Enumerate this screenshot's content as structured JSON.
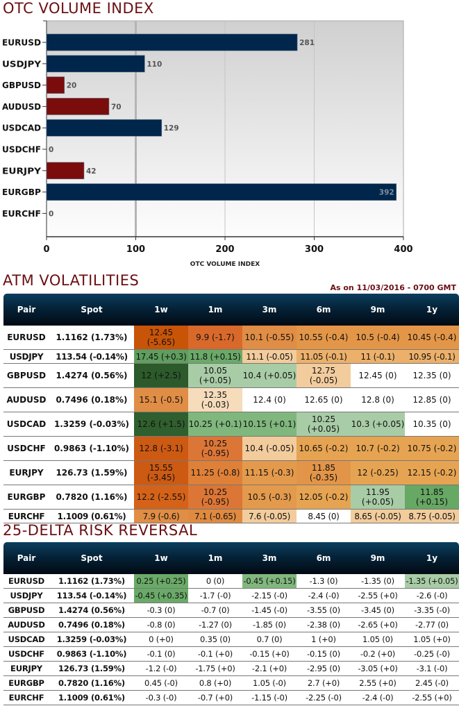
{
  "sections": {
    "volume_title": "OTC VOLUME INDEX",
    "atm_title": "ATM VOLATILITIES",
    "rr_title": "25-DELTA RISK REVERSAL",
    "as_on": "As on 11/03/2016 - 0700 GMT"
  },
  "colors": {
    "title": "#6b0f12",
    "bar_positive": "#01264c",
    "bar_negative": "#7b0c0c",
    "header_dark": "#010a14"
  },
  "chart_data": {
    "type": "bar",
    "orientation": "horizontal",
    "title": "OTC VOLUME INDEX",
    "xlabel": "OTC VOLUME INDEX",
    "ylabel": "",
    "categories": [
      "EURUSD",
      "USDJPY",
      "GBPUSD",
      "AUDUSD",
      "USDCAD",
      "USDCHF",
      "EURJPY",
      "EURGBP",
      "EURCHF"
    ],
    "values": [
      281,
      110,
      20,
      70,
      129,
      0,
      42,
      392,
      0
    ],
    "bar_colors": [
      "navy",
      "navy",
      "maroon",
      "maroon",
      "navy",
      "navy",
      "maroon",
      "navy",
      "navy"
    ],
    "xlim": [
      0,
      400
    ],
    "xticks": [
      0,
      100,
      200,
      300,
      400
    ],
    "grid": true,
    "legend": "none"
  },
  "atm": {
    "headers": [
      "Pair",
      "Spot",
      "1w",
      "1m",
      "3m",
      "6m",
      "9m",
      "1y"
    ],
    "rows": [
      {
        "pair": "EURUSD",
        "spot": "1.1162 (1.73%)",
        "cells": [
          {
            "v": "12.45 (-5.65)",
            "c": "#c85408"
          },
          {
            "v": "9.9 (-1.7)",
            "c": "#d9692a"
          },
          {
            "v": "10.1 (-0.55)",
            "c": "#e08d45"
          },
          {
            "v": "10.55 (-0.4)",
            "c": "#e39648"
          },
          {
            "v": "10.5 (-0.4)",
            "c": "#e39648"
          },
          {
            "v": "10.45 (-0.4)",
            "c": "#e39648"
          }
        ]
      },
      {
        "pair": "USDJPY",
        "spot": "113.54 (-0.14%)",
        "short": true,
        "cells": [
          {
            "v": "17.45 (+0.3)",
            "c": "#5f9e5e"
          },
          {
            "v": "11.8 (+0.15)",
            "c": "#6aaa68"
          },
          {
            "v": "11.1 (-0.05)",
            "c": "#f2cc9c"
          },
          {
            "v": "11.05 (-0.1)",
            "c": "#ecb06a"
          },
          {
            "v": "11 (-0.1)",
            "c": "#ecb06a"
          },
          {
            "v": "10.95 (-0.1)",
            "c": "#ecb06a"
          }
        ]
      },
      {
        "pair": "GBPUSD",
        "spot": "1.4274 (0.56%)",
        "cells": [
          {
            "v": "12 (+2.5)",
            "c": "#2c5a2b"
          },
          {
            "v": "10.05 (+0.05)",
            "c": "#a8cca6"
          },
          {
            "v": "10.4 (+0.05)",
            "c": "#a8cca6"
          },
          {
            "v": "12.75 (-0.05)",
            "c": "#f3cc9e"
          },
          {
            "v": "12.45 (0)",
            "c": "#ffffff"
          },
          {
            "v": "12.35 (0)",
            "c": "#ffffff"
          }
        ]
      },
      {
        "pair": "AUDUSD",
        "spot": "0.7496 (0.18%)",
        "cells": [
          {
            "v": "15.1 (-0.5)",
            "c": "#e08d45"
          },
          {
            "v": "12.35 (-0.03)",
            "c": "#f6dcbb"
          },
          {
            "v": "12.4 (0)",
            "c": "#ffffff"
          },
          {
            "v": "12.65 (0)",
            "c": "#ffffff"
          },
          {
            "v": "12.8 (0)",
            "c": "#ffffff"
          },
          {
            "v": "12.85 (0)",
            "c": "#ffffff"
          }
        ]
      },
      {
        "pair": "USDCAD",
        "spot": "1.3259 (-0.03%)",
        "cells": [
          {
            "v": "12.6 (+1.5)",
            "c": "#2f5f2e"
          },
          {
            "v": "10.25 (+0.1)",
            "c": "#80b77d"
          },
          {
            "v": "10.15 (+0.1)",
            "c": "#80b77d"
          },
          {
            "v": "10.25 (+0.05)",
            "c": "#a8cca6"
          },
          {
            "v": "10.3 (+0.05)",
            "c": "#a8cca6"
          },
          {
            "v": "10.35 (0)",
            "c": "#ffffff"
          }
        ]
      },
      {
        "pair": "USDCHF",
        "spot": "0.9863 (-1.10%)",
        "cells": [
          {
            "v": "12.8 (-3.1)",
            "c": "#cd5a12"
          },
          {
            "v": "10.25 (-0.95)",
            "c": "#dc7636"
          },
          {
            "v": "10.4 (-0.05)",
            "c": "#f2cc9c"
          },
          {
            "v": "10.65 (-0.2)",
            "c": "#e6a452"
          },
          {
            "v": "10.7 (-0.2)",
            "c": "#e6a452"
          },
          {
            "v": "10.75 (-0.2)",
            "c": "#e6a452"
          }
        ]
      },
      {
        "pair": "EURJPY",
        "spot": "126.73 (1.59%)",
        "cells": [
          {
            "v": "15.55 (-3.45)",
            "c": "#cd5a12"
          },
          {
            "v": "11.25 (-0.8)",
            "c": "#df8038"
          },
          {
            "v": "11.15 (-0.3)",
            "c": "#e39a4c"
          },
          {
            "v": "11.85 (-0.35)",
            "c": "#e29548"
          },
          {
            "v": "12 (-0.25)",
            "c": "#e6a452"
          },
          {
            "v": "12.15 (-0.2)",
            "c": "#e6a452"
          }
        ]
      },
      {
        "pair": "EURGBP",
        "spot": "0.7820 (1.16%)",
        "cells": [
          {
            "v": "12.2 (-2.55)",
            "c": "#d46218"
          },
          {
            "v": "10.25 (-0.95)",
            "c": "#dc7636"
          },
          {
            "v": "10.5 (-0.3)",
            "c": "#e39a4c"
          },
          {
            "v": "12.05 (-0.2)",
            "c": "#e6a452"
          },
          {
            "v": "11.95 (+0.05)",
            "c": "#a8cca6"
          },
          {
            "v": "11.85 (+0.15)",
            "c": "#66a864"
          }
        ]
      },
      {
        "pair": "EURCHF",
        "spot": "1.1009 (0.61%)",
        "short": true,
        "cells": [
          {
            "v": "7.9 (-0.6)",
            "c": "#e08d45"
          },
          {
            "v": "7.1 (-0.65)",
            "c": "#df8a40"
          },
          {
            "v": "7.6 (-0.05)",
            "c": "#f2cc9c"
          },
          {
            "v": "8.45 (0)",
            "c": "#ffffff"
          },
          {
            "v": "8.65 (-0.05)",
            "c": "#f2cc9c"
          },
          {
            "v": "8.75 (-0.05)",
            "c": "#f2cc9c"
          }
        ]
      }
    ]
  },
  "rr": {
    "headers": [
      "Pair",
      "Spot",
      "1w",
      "1m",
      "3m",
      "6m",
      "9m",
      "1y"
    ],
    "rows": [
      {
        "pair": "EURUSD",
        "spot": "1.1162 (1.73%)",
        "cells": [
          {
            "v": "0.25 (+0.25)",
            "c": "#6aaa68"
          },
          {
            "v": "0 (0)",
            "c": "#ffffff"
          },
          {
            "v": "-0.45 (+0.15)",
            "c": "#80b77d"
          },
          {
            "v": "-1.3 (0)",
            "c": "#ffffff"
          },
          {
            "v": "-1.35 (0)",
            "c": "#ffffff"
          },
          {
            "v": "-1.35 (+0.05)",
            "c": "#a8cca6"
          }
        ]
      },
      {
        "pair": "USDJPY",
        "spot": "113.54 (-0.14%)",
        "cells": [
          {
            "v": "-0.45 (+0.35)",
            "c": "#6aaa68"
          },
          {
            "v": "-1.7 (-0)",
            "c": "#ffffff"
          },
          {
            "v": "-2.15 (-0)",
            "c": "#ffffff"
          },
          {
            "v": "-2.4 (-0)",
            "c": "#ffffff"
          },
          {
            "v": "-2.55 (+0)",
            "c": "#ffffff"
          },
          {
            "v": "-2.6 (-0)",
            "c": "#ffffff"
          }
        ]
      },
      {
        "pair": "GBPUSD",
        "spot": "1.4274 (0.56%)",
        "cells": [
          {
            "v": "-0.3 (0)",
            "c": "#ffffff"
          },
          {
            "v": "-0.7 (0)",
            "c": "#ffffff"
          },
          {
            "v": "-1.45 (-0)",
            "c": "#ffffff"
          },
          {
            "v": "-3.55 (0)",
            "c": "#ffffff"
          },
          {
            "v": "-3.45 (0)",
            "c": "#ffffff"
          },
          {
            "v": "-3.35 (-0)",
            "c": "#ffffff"
          }
        ]
      },
      {
        "pair": "AUDUSD",
        "spot": "0.7496 (0.18%)",
        "cells": [
          {
            "v": "-0.8 (0)",
            "c": "#ffffff"
          },
          {
            "v": "-1.27 (0)",
            "c": "#ffffff"
          },
          {
            "v": "-1.85 (0)",
            "c": "#ffffff"
          },
          {
            "v": "-2.38 (0)",
            "c": "#ffffff"
          },
          {
            "v": "-2.65 (+0)",
            "c": "#ffffff"
          },
          {
            "v": "-2.77 (0)",
            "c": "#ffffff"
          }
        ]
      },
      {
        "pair": "USDCAD",
        "spot": "1.3259 (-0.03%)",
        "cells": [
          {
            "v": "0 (+0)",
            "c": "#ffffff"
          },
          {
            "v": "0.35 (0)",
            "c": "#ffffff"
          },
          {
            "v": "0.7 (0)",
            "c": "#ffffff"
          },
          {
            "v": "1 (+0)",
            "c": "#ffffff"
          },
          {
            "v": "1.05 (0)",
            "c": "#ffffff"
          },
          {
            "v": "1.05 (+0)",
            "c": "#ffffff"
          }
        ]
      },
      {
        "pair": "USDCHF",
        "spot": "0.9863 (-1.10%)",
        "cells": [
          {
            "v": "-0.1 (0)",
            "c": "#ffffff"
          },
          {
            "v": "-0.1 (+0)",
            "c": "#ffffff"
          },
          {
            "v": "-0.15 (+0)",
            "c": "#ffffff"
          },
          {
            "v": "-0.15 (0)",
            "c": "#ffffff"
          },
          {
            "v": "-0.2 (+0)",
            "c": "#ffffff"
          },
          {
            "v": "-0.25 (-0)",
            "c": "#ffffff"
          }
        ]
      },
      {
        "pair": "EURJPY",
        "spot": "126.73 (1.59%)",
        "cells": [
          {
            "v": "-1.2 (-0)",
            "c": "#ffffff"
          },
          {
            "v": "-1.75 (+0)",
            "c": "#ffffff"
          },
          {
            "v": "-2.1 (+0)",
            "c": "#ffffff"
          },
          {
            "v": "-2.95 (0)",
            "c": "#ffffff"
          },
          {
            "v": "-3.05 (+0)",
            "c": "#ffffff"
          },
          {
            "v": "-3.1 (-0)",
            "c": "#ffffff"
          }
        ]
      },
      {
        "pair": "EURGBP",
        "spot": "0.7820 (1.16%)",
        "cells": [
          {
            "v": "0.45 (-0)",
            "c": "#ffffff"
          },
          {
            "v": "0.8 (+0)",
            "c": "#ffffff"
          },
          {
            "v": "1.05 (-0)",
            "c": "#ffffff"
          },
          {
            "v": "2.7 (+0)",
            "c": "#ffffff"
          },
          {
            "v": "2.55 (+0)",
            "c": "#ffffff"
          },
          {
            "v": "2.45 (-0)",
            "c": "#ffffff"
          }
        ]
      },
      {
        "pair": "EURCHF",
        "spot": "1.1009 (0.61%)",
        "cells": [
          {
            "v": "-0.3 (-0)",
            "c": "#ffffff"
          },
          {
            "v": "-0.7 (+0)",
            "c": "#ffffff"
          },
          {
            "v": "-1.15 (-0)",
            "c": "#ffffff"
          },
          {
            "v": "-2.25 (-0)",
            "c": "#ffffff"
          },
          {
            "v": "-2.4 (-0)",
            "c": "#ffffff"
          },
          {
            "v": "-2.55 (+0)",
            "c": "#ffffff"
          }
        ]
      }
    ]
  }
}
